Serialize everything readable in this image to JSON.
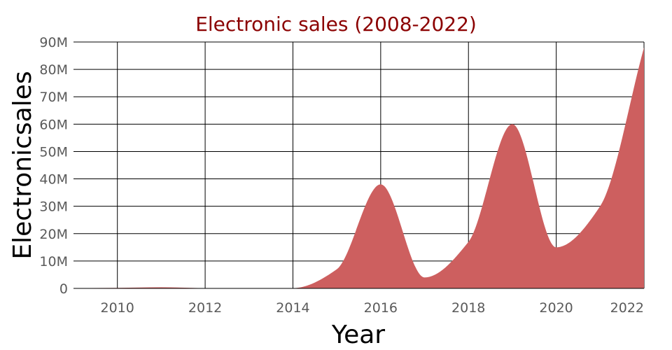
{
  "chart_data": {
    "type": "area",
    "title": "Electronic sales (2008-2022)",
    "xlabel": "Year",
    "ylabel": "Electronicsales",
    "xlim": [
      2009,
      2022
    ],
    "ylim": [
      0,
      90000000
    ],
    "x_ticks": [
      2010,
      2012,
      2014,
      2016,
      2018,
      2020,
      2022
    ],
    "x_tick_labels": [
      "2010",
      "2012",
      "2014",
      "2016",
      "2018",
      "2020",
      "2022"
    ],
    "y_ticks": [
      0,
      10000000,
      20000000,
      30000000,
      40000000,
      50000000,
      60000000,
      70000000,
      80000000,
      90000000
    ],
    "y_tick_labels": [
      "0",
      "10M",
      "20M",
      "30M",
      "40M",
      "50M",
      "60M",
      "70M",
      "80M",
      "90M"
    ],
    "grid": true,
    "series": [
      {
        "x": [
          2009,
          2010,
          2011,
          2012,
          2013,
          2014,
          2015,
          2016,
          2017,
          2018,
          2019,
          2020,
          2021,
          2022
        ],
        "values": [
          100000,
          200000,
          400000,
          100000,
          50000,
          100000,
          7000000,
          38000000,
          4000000,
          17000000,
          60000000,
          15000000,
          30000000,
          88000000
        ]
      }
    ],
    "colors": {
      "fill": "#cd5f5f",
      "title": "#8b0000",
      "grid": "#000000",
      "tick": "#5a5a5a"
    }
  }
}
